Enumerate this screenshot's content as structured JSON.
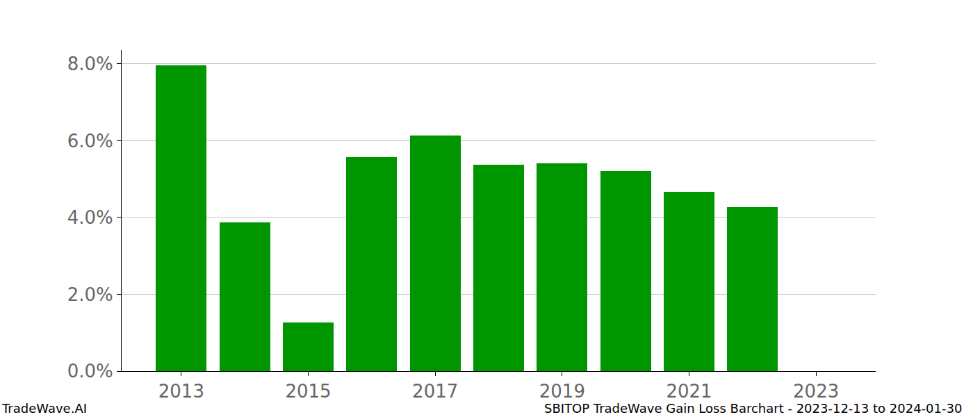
{
  "chart_data": {
    "type": "bar",
    "x": [
      2013,
      2014,
      2015,
      2016,
      2017,
      2018,
      2019,
      2020,
      2021,
      2022,
      2023
    ],
    "values": [
      7.96,
      3.87,
      1.27,
      5.57,
      6.14,
      5.38,
      5.41,
      5.21,
      4.67,
      4.27,
      0
    ],
    "color": "#009600",
    "xlim": [
      2012.06,
      2023.94
    ],
    "xticks": [
      2013,
      2015,
      2017,
      2019,
      2021,
      2023
    ],
    "ylim": [
      0,
      8.36
    ],
    "yticks": [
      {
        "value": 0,
        "label": "0.0%"
      },
      {
        "value": 2,
        "label": "2.0%"
      },
      {
        "value": 4,
        "label": "4.0%"
      },
      {
        "value": 6,
        "label": "6.0%"
      },
      {
        "value": 8,
        "label": "8.0%"
      }
    ],
    "grid": true,
    "annotations": [
      "TradeWave.AI",
      "SBITOP TradeWave Gain Loss Barchart - 2023-12-13 to 2024-01-30"
    ]
  }
}
